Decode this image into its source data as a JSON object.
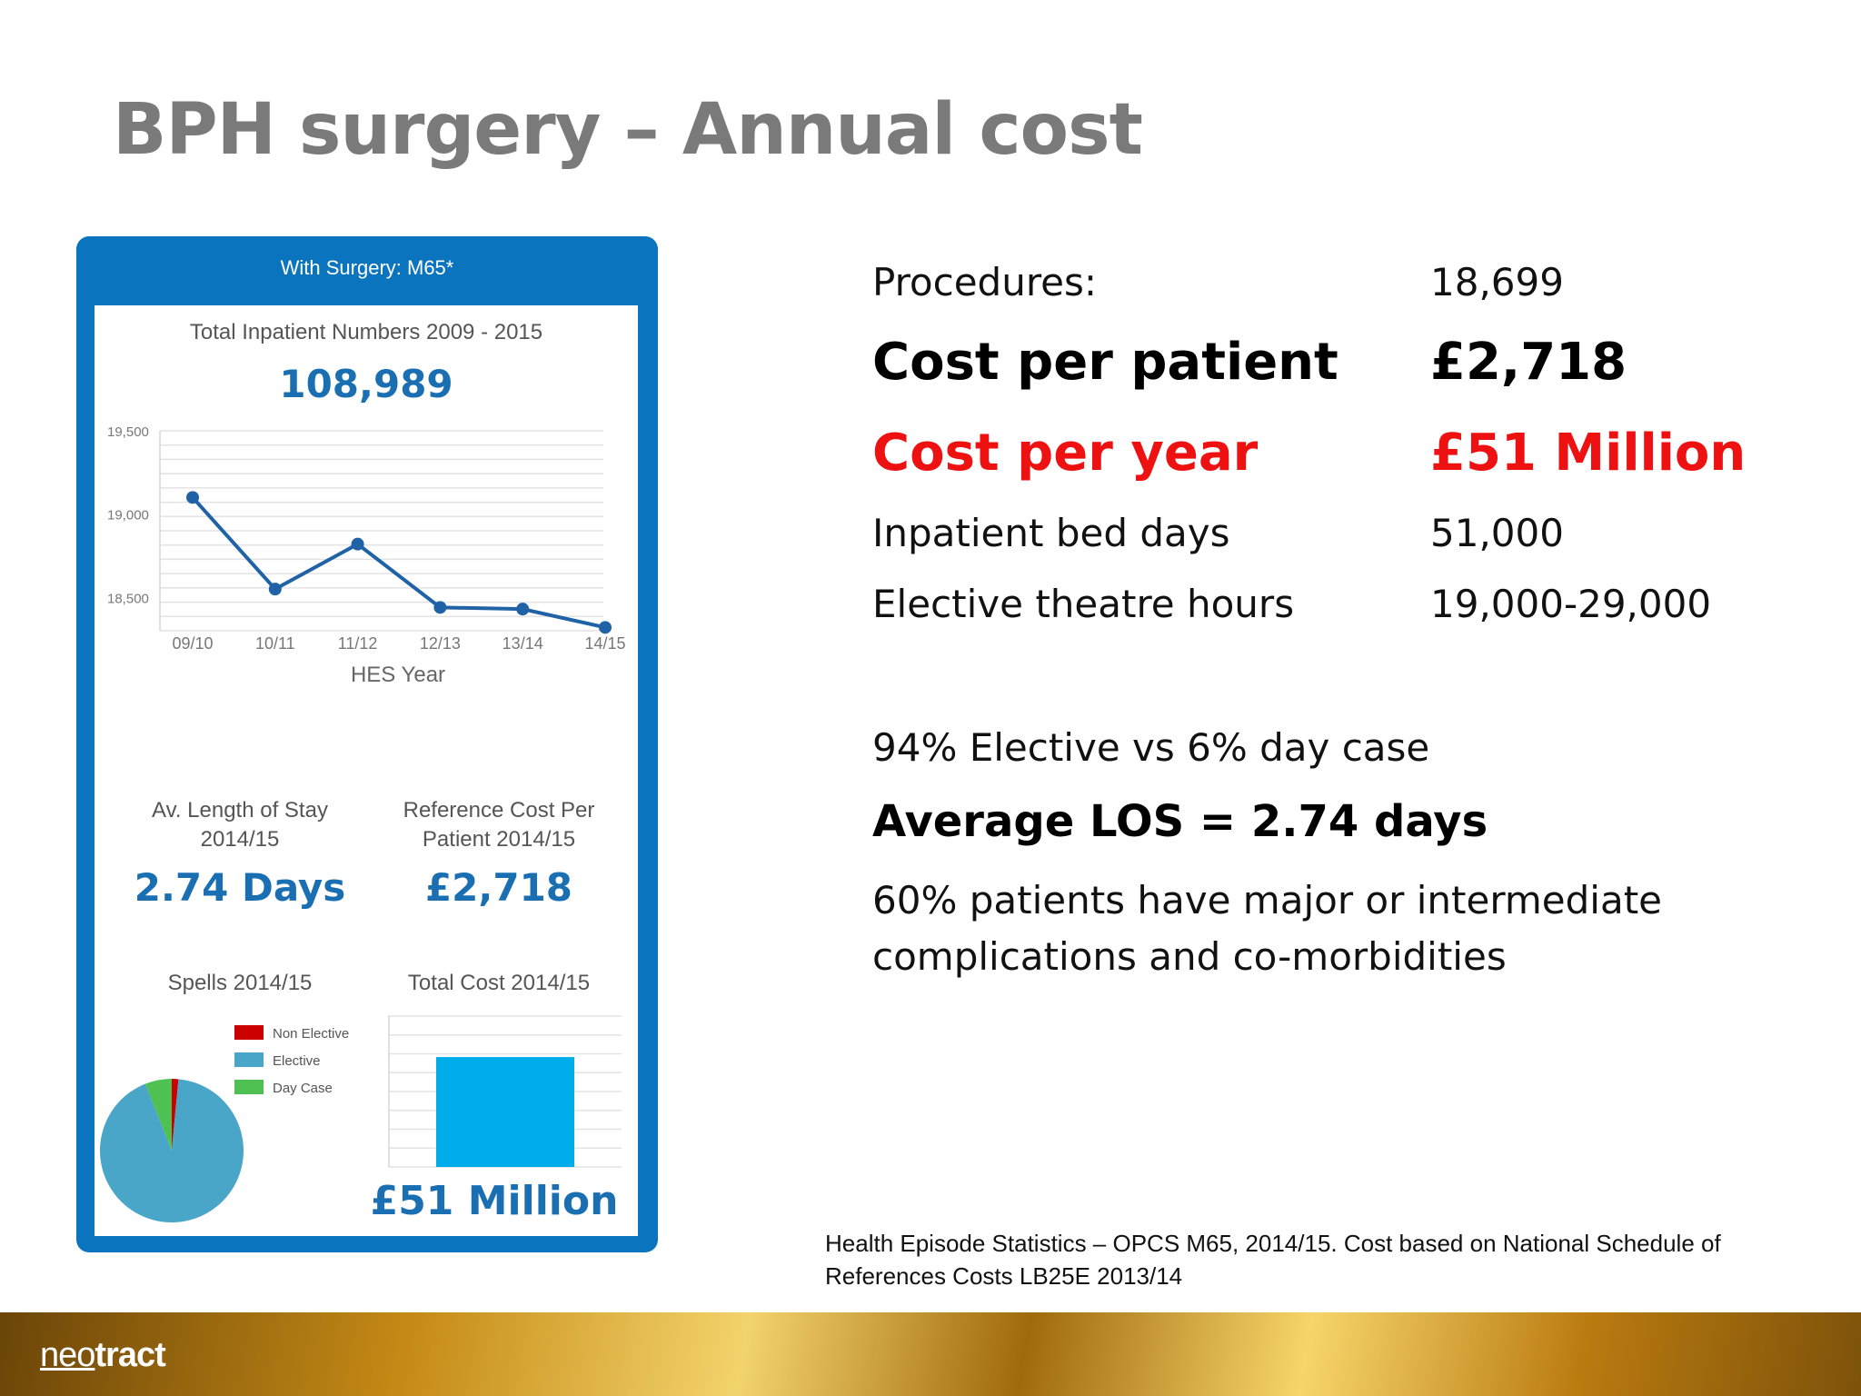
{
  "slide": {
    "title": "BPH surgery – Annual cost",
    "footnote": "Health Episode Statistics – OPCS M65, 2014/15. Cost based on National Schedule of References Costs LB25E 2013/14",
    "logo_light": "neo",
    "logo_heavy": "tract"
  },
  "panel": {
    "header": "With Surgery: M65*",
    "total_title": "Total Inpatient Numbers 2009 - 2015",
    "total_value": "108,989",
    "los_title_1": "Av. Length of Stay",
    "los_title_2": "2014/15",
    "los_value": "2.74 Days",
    "ref_title_1": "Reference Cost Per",
    "ref_title_2": "Patient 2014/15",
    "ref_value": "£2,718",
    "spells_title": "Spells 2014/15",
    "cost_title": "Total Cost 2014/15",
    "cost_value": "£51 Million"
  },
  "chart_data": [
    {
      "type": "line",
      "title": "Total Inpatient Numbers 2009 - 2015",
      "xlabel": "HES Year",
      "ylabel": "",
      "categories": [
        "09/10",
        "10/11",
        "11/12",
        "12/13",
        "13/14",
        "14/15"
      ],
      "values": [
        19100,
        18550,
        18820,
        18440,
        18430,
        18320
      ],
      "ylim": [
        18300,
        19500
      ],
      "yticks": [
        19500,
        19000,
        18500
      ],
      "ytick_labels": [
        "19,500",
        "19,000",
        "18,500"
      ],
      "grid": true,
      "color": "#1f63a6"
    },
    {
      "type": "pie",
      "title": "Spells 2014/15",
      "legend_position": "top-right",
      "slices": [
        {
          "name": "Non Elective",
          "value": 1.5,
          "color": "#cc0000"
        },
        {
          "name": "Elective",
          "value": 92.5,
          "color": "#4aa6c9"
        },
        {
          "name": "Day Case",
          "value": 6,
          "color": "#4fc152"
        }
      ]
    },
    {
      "type": "bar",
      "title": "Total Cost 2014/15",
      "categories": [
        ""
      ],
      "values": [
        51
      ],
      "ylim": [
        0,
        70
      ],
      "grid": true,
      "color": "#00adeb",
      "data_label": "£51 Million"
    }
  ],
  "stats": [
    {
      "label": "Procedures:",
      "value": "18,699",
      "style": "normal"
    },
    {
      "label": "Cost per patient",
      "value": "£2,718",
      "style": "big"
    },
    {
      "label": "Cost per year",
      "value": "£51 Million",
      "style": "red"
    },
    {
      "label": "Inpatient bed days",
      "value": "51,000",
      "style": "normal"
    },
    {
      "label": "Elective theatre hours",
      "value": "19,000-29,000",
      "style": "normal"
    }
  ],
  "notes": {
    "elective_split": "94% Elective vs 6% day case",
    "average_los": "Average LOS = 2.74 days",
    "complications_1": "60% patients have major or intermediate",
    "complications_2": "complications and co-morbidities"
  }
}
